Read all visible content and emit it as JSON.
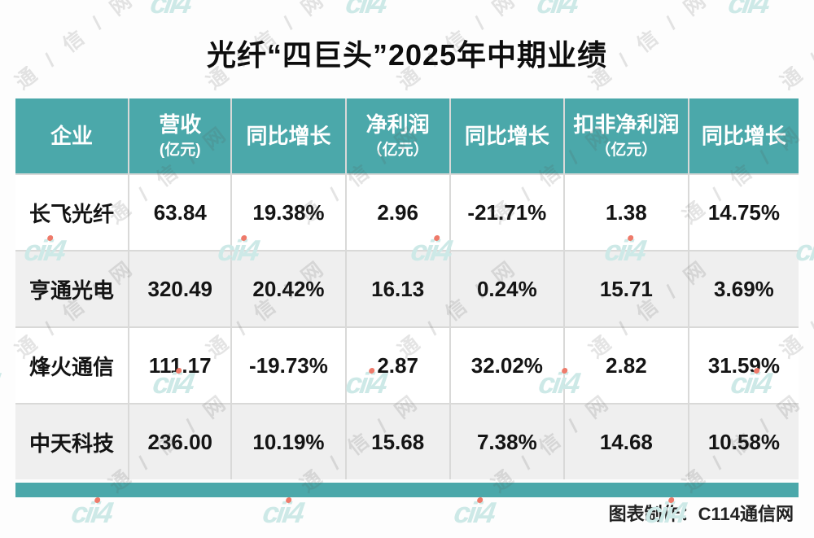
{
  "title": "光纤“四巨头”2025年中期业绩",
  "colors": {
    "header_teal": "#4BA8AA",
    "bottom_bar_teal": "#4BA8AA",
    "row_alt_gray": "#EFEFEF",
    "grid_line": "#D9D9D8",
    "watermark_logo_teal": "#CDE9E7",
    "watermark_dot_red": "#EE7A6A"
  },
  "table": {
    "columns": [
      {
        "label": "企业",
        "sublabel": ""
      },
      {
        "label": "营收",
        "sublabel": "(亿元)"
      },
      {
        "label": "同比增长",
        "sublabel": ""
      },
      {
        "label": "净利润",
        "sublabel": "（亿元）"
      },
      {
        "label": "同比增长",
        "sublabel": ""
      },
      {
        "label": "扣非净利润",
        "sublabel": "（亿元）"
      },
      {
        "label": "同比增长",
        "sublabel": ""
      }
    ],
    "rows": [
      {
        "company": "长飞光纤",
        "revenue": "63.84",
        "revenue_yoy": "19.38%",
        "net_profit": "2.96",
        "net_profit_yoy": "-21.71%",
        "non_gaap_profit": "1.38",
        "non_gaap_yoy": "14.75%"
      },
      {
        "company": "亨通光电",
        "revenue": "320.49",
        "revenue_yoy": "20.42%",
        "net_profit": "16.13",
        "net_profit_yoy": "0.24%",
        "non_gaap_profit": "15.71",
        "non_gaap_yoy": "3.69%"
      },
      {
        "company": "烽火通信",
        "revenue": "111.17",
        "revenue_yoy": "-19.73%",
        "net_profit": "2.87",
        "net_profit_yoy": "32.02%",
        "non_gaap_profit": "2.82",
        "non_gaap_yoy": "31.59%"
      },
      {
        "company": "中天科技",
        "revenue": "236.00",
        "revenue_yoy": "10.19%",
        "net_profit": "15.68",
        "net_profit_yoy": "7.38%",
        "non_gaap_profit": "14.68",
        "non_gaap_yoy": "10.58%"
      }
    ]
  },
  "footer": {
    "credit": "图表制作：C114通信网"
  },
  "watermark": {
    "logo_text": "cii4",
    "site_text": "通 / 信 / 网"
  },
  "chart_data": {
    "type": "table",
    "title": "光纤“四巨头”2025年中期业绩",
    "columns": [
      "企业",
      "营收(亿元)",
      "同比增长",
      "净利润(亿元)",
      "同比增长",
      "扣非净利润(亿元)",
      "同比增长"
    ],
    "rows": [
      [
        "长飞光纤",
        63.84,
        "19.38%",
        2.96,
        "-21.71%",
        1.38,
        "14.75%"
      ],
      [
        "亨通光电",
        320.49,
        "20.42%",
        16.13,
        "0.24%",
        15.71,
        "3.69%"
      ],
      [
        "烽火通信",
        111.17,
        "-19.73%",
        2.87,
        "32.02%",
        2.82,
        "31.59%"
      ],
      [
        "中天科技",
        236.0,
        "10.19%",
        15.68,
        "7.38%",
        14.68,
        "10.58%"
      ]
    ],
    "source_credit": "图表制作：C114通信网"
  }
}
